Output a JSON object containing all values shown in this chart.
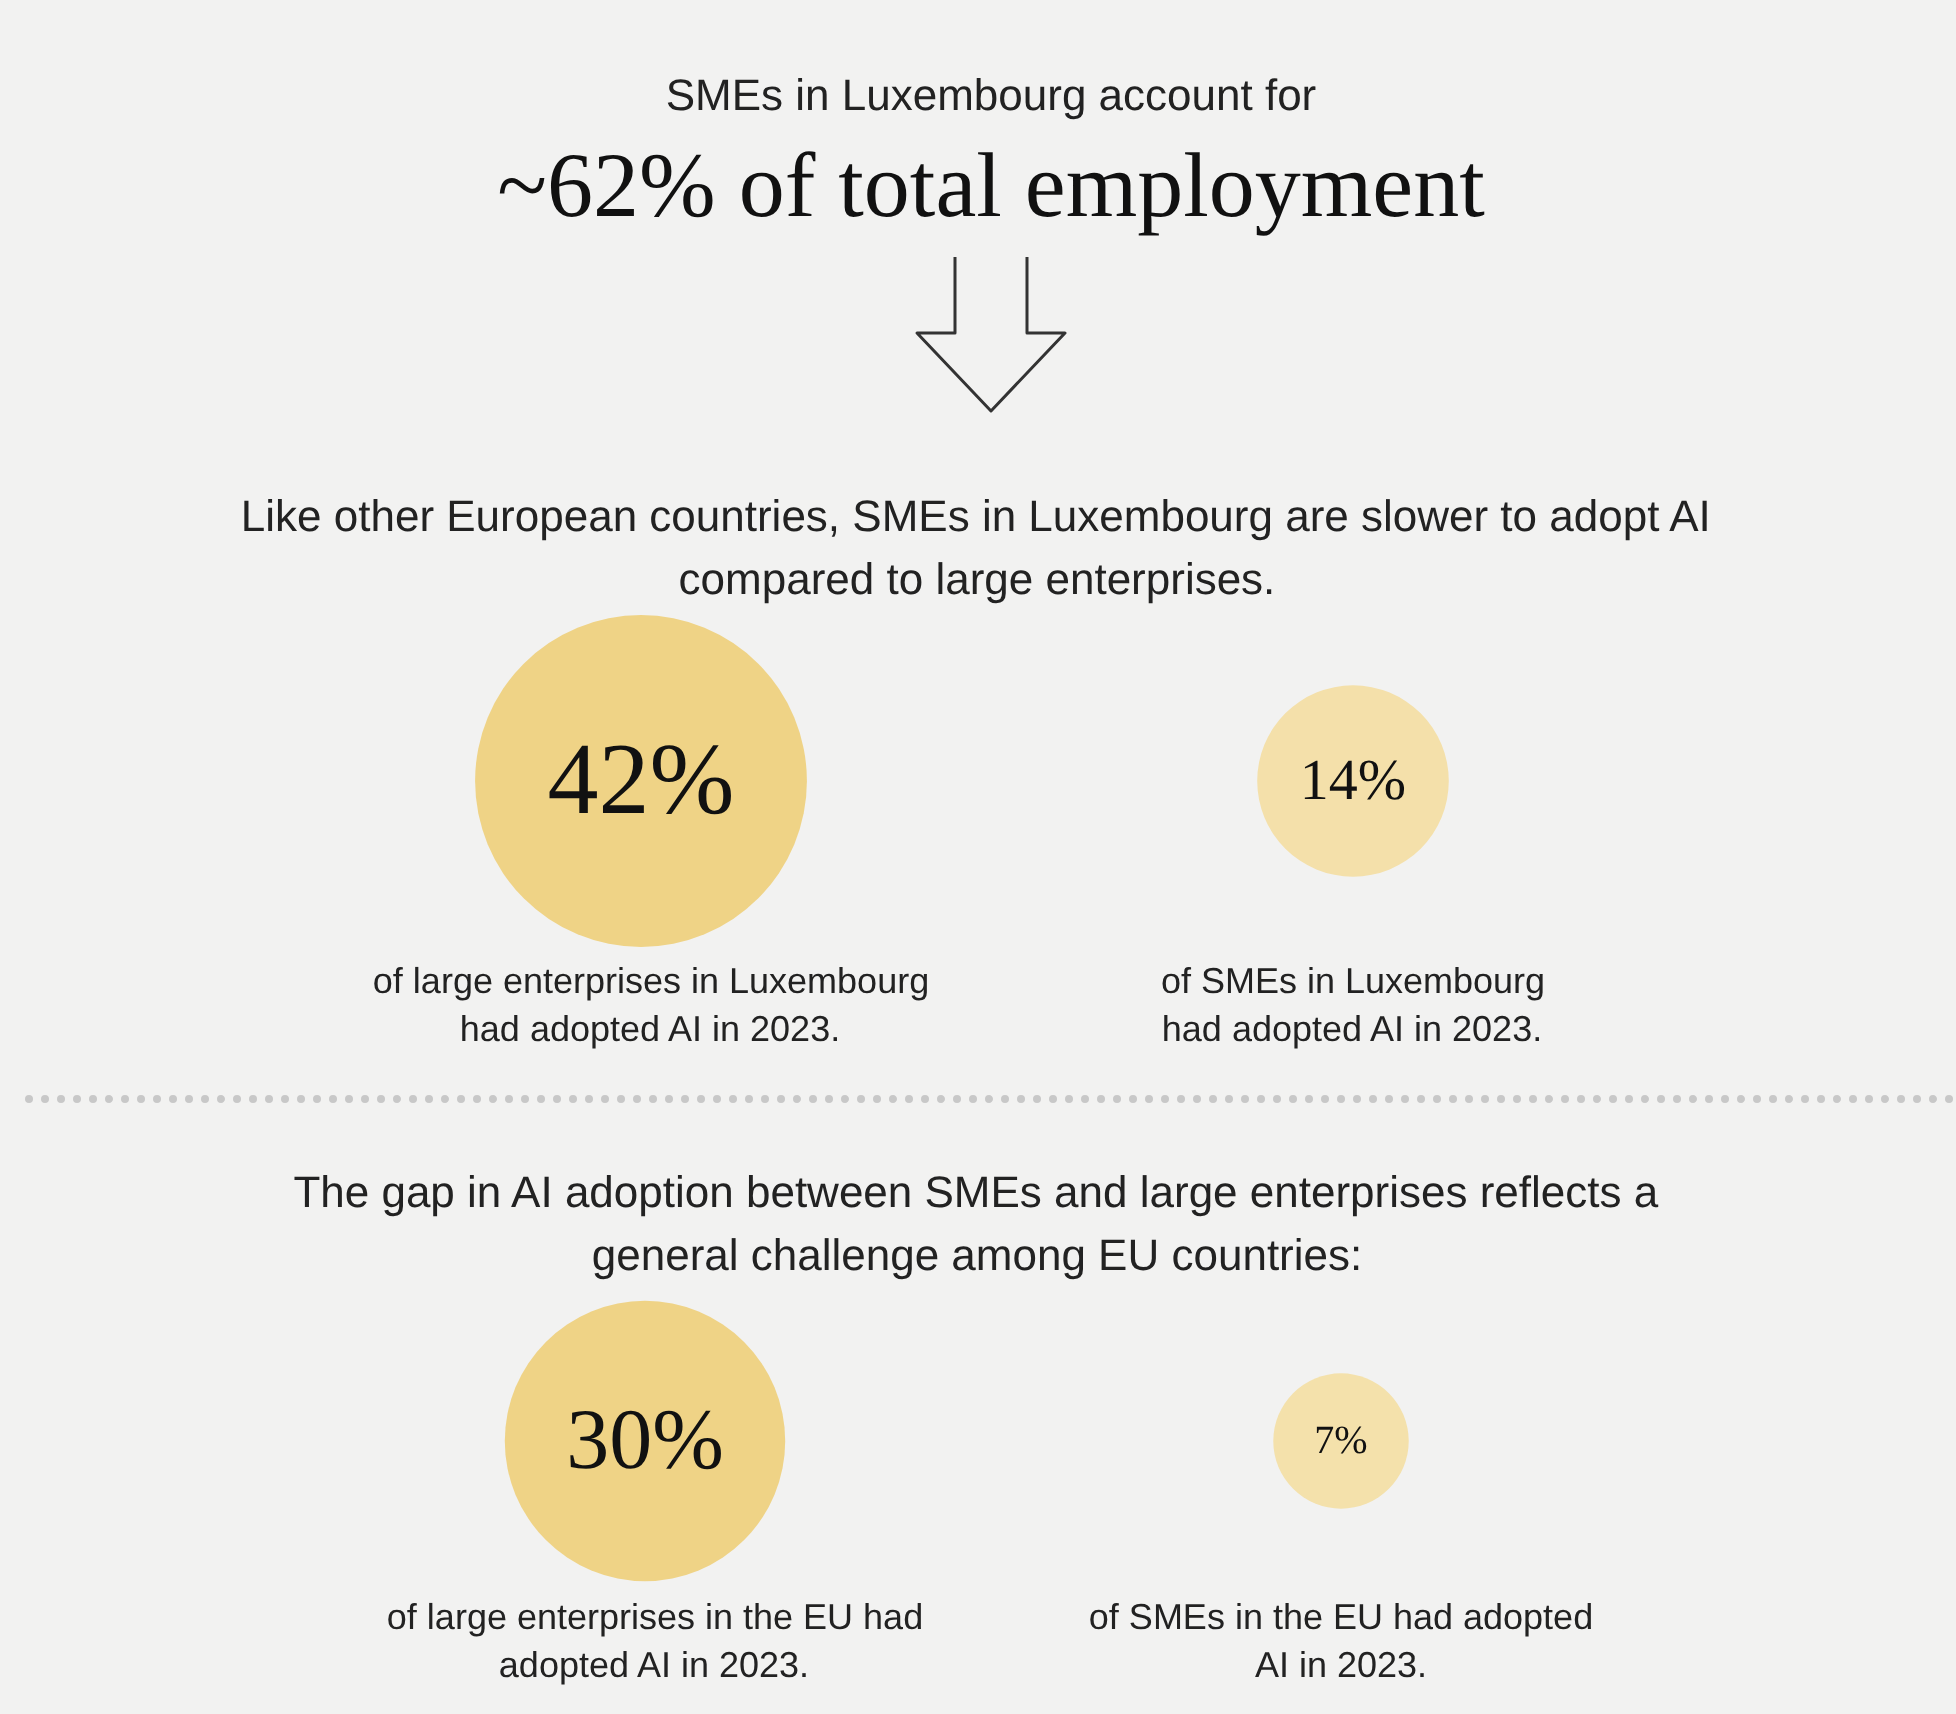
{
  "chart_data": [
    {
      "type": "other",
      "title": "SMEs in Luxembourg account for",
      "subtitle": "~62% of total employment"
    },
    {
      "type": "other",
      "title": "Like other European countries, SMEs in Luxembourg are slower to adopt AI\ncompared to large enterprises.",
      "categories": [
        null,
        null
      ],
      "annotations": [
        "of large enterprises in Luxembourg\nhad adopted AI in 2023.",
        "of SMEs in Luxembourg\nhad adopted AI in 2023."
      ],
      "values": [
        42,
        14
      ],
      "value_labels": [
        "42%",
        "14%"
      ],
      "colors": [
        "#efd386",
        "#f4e0aa"
      ]
    },
    {
      "type": "other",
      "title": "The gap in AI adoption between SMEs and large enterprises reflects a\ngeneral challenge among EU countries:",
      "categories": [
        null,
        null
      ],
      "annotations": [
        "of large enterprises in the EU had\nadopted AI in 2023.",
        "of SMEs in the EU had adopted\nAI in 2023."
      ],
      "values": [
        30,
        7
      ],
      "value_labels": [
        "30%",
        "7%"
      ],
      "colors": [
        "#efd386",
        "#f4e1ab"
      ]
    }
  ]
}
